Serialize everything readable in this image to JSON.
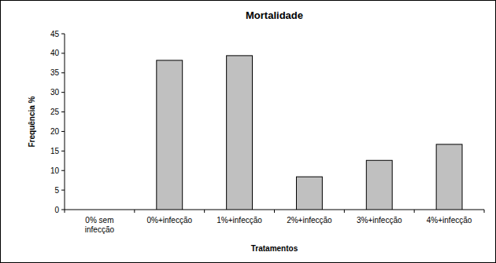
{
  "chart_data": {
    "type": "bar",
    "title": "Mortalidade",
    "x_label": "Tratamentos",
    "y_label": "Frequência %",
    "categories": [
      "0% sem infecção",
      "0%+infecção",
      "1%+infecção",
      "2%+infecção",
      "3%+infecção",
      "4%+infecção"
    ],
    "values": [
      0,
      38.2,
      39.4,
      8.4,
      12.6,
      16.7
    ],
    "color": "#c0c0c0",
    "ylim": [
      0,
      45
    ],
    "yticks": [
      0,
      5,
      10,
      15,
      20,
      25,
      30,
      35,
      40,
      45
    ],
    "grid": false
  }
}
